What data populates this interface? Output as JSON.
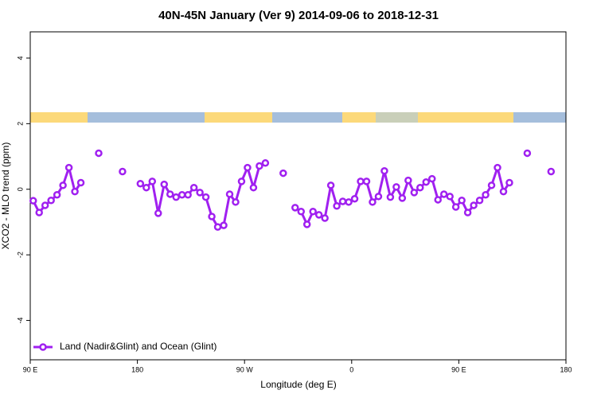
{
  "chart_data": {
    "type": "line",
    "title": "40N-45N January (Ver 9)   2014-09-06 to 2018-12-31",
    "x_label": "Longitude (deg E)",
    "y_label": "XCO2 - MLO trend (ppm)",
    "x": [
      92.5,
      97.5,
      102.5,
      107.5,
      112.5,
      117.5,
      122.5,
      127.5,
      132.5,
      137.5,
      147.5,
      157.5,
      167.5,
      177.5,
      182.5,
      187.5,
      192.5,
      197.5,
      202.5,
      207.5,
      212.5,
      217.5,
      222.5,
      227.5,
      232.5,
      237.5,
      242.5,
      247.5,
      252.5,
      257.5,
      262.5,
      267.5,
      272.5,
      277.5,
      282.5,
      287.5,
      297.5,
      302.5,
      307.5,
      312.5,
      317.5,
      322.5,
      327.5,
      332.5,
      337.5,
      342.5,
      347.5,
      352.5,
      357.5,
      362.5,
      367.5,
      372.5,
      377.5,
      382.5,
      387.5,
      392.5,
      397.5,
      402.5,
      407.5,
      412.5,
      417.5,
      422.5,
      427.5,
      432.5,
      437.5,
      442.5,
      447.5,
      452.5,
      457.5,
      462.5,
      467.5,
      472.5,
      477.5,
      482.5,
      487.5,
      492.5,
      497.5,
      507.5,
      517.5,
      527.5
    ],
    "series": [
      {
        "name": "Land (Nadir&Glint) and Ocean (Glint)",
        "color": "#a020f0",
        "values": [
          -0.35,
          -0.71,
          -0.49,
          -0.34,
          -0.17,
          0.12,
          0.66,
          -0.07,
          0.2,
          null,
          1.1,
          null,
          0.54,
          null,
          0.17,
          0.05,
          0.24,
          -0.73,
          0.15,
          -0.15,
          -0.24,
          -0.17,
          -0.17,
          0.05,
          -0.1,
          -0.24,
          -0.83,
          -1.15,
          -1.1,
          -0.15,
          -0.39,
          0.24,
          0.66,
          0.05,
          0.71,
          0.8,
          null,
          0.49,
          null,
          -0.56,
          -0.68,
          -1.07,
          -0.68,
          -0.78,
          -0.88,
          0.12,
          -0.51,
          -0.37,
          -0.39,
          -0.29,
          0.24,
          0.24,
          -0.39,
          -0.22,
          0.56,
          -0.24,
          0.07,
          -0.27,
          0.27,
          -0.1,
          0.05,
          0.22,
          0.32,
          -0.32,
          -0.15,
          -0.22,
          -0.54,
          -0.34,
          -0.71,
          -0.49,
          -0.34,
          -0.17,
          0.12,
          0.66,
          -0.07,
          0.2,
          null,
          1.1,
          null,
          0.54
        ]
      }
    ],
    "xlim": [
      90,
      540
    ],
    "xticks": [
      {
        "value": 90,
        "label": "90 E"
      },
      {
        "value": 180,
        "label": "180"
      },
      {
        "value": 270,
        "label": "90 W"
      },
      {
        "value": 360,
        "label": "0"
      },
      {
        "value": 450,
        "label": "90 E"
      },
      {
        "value": 540,
        "label": "180"
      }
    ],
    "ylim": [
      -5.2,
      4.8
    ],
    "yticks": [
      -4,
      -2,
      0,
      2,
      4
    ],
    "grid": false,
    "legend": "bottom left"
  }
}
